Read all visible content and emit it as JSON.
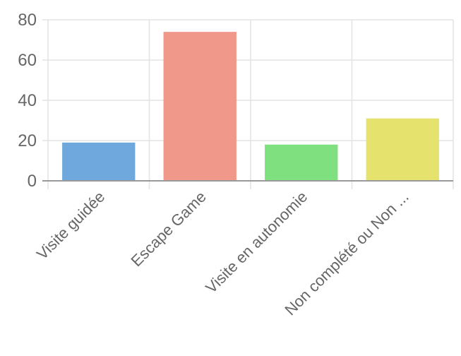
{
  "chart_data": {
    "type": "bar",
    "categories": [
      "Visite guidée",
      "Escape Game",
      "Visite en autonomie",
      "Non complété ou Non ..."
    ],
    "values": [
      19,
      74,
      18,
      31
    ],
    "colors": [
      "#6fa8dc",
      "#f0988a",
      "#7ee07e",
      "#e6e26e"
    ],
    "ylim": [
      0,
      80
    ],
    "yticks": [
      0,
      20,
      40,
      60,
      80
    ],
    "grid": true,
    "legend": "none"
  }
}
